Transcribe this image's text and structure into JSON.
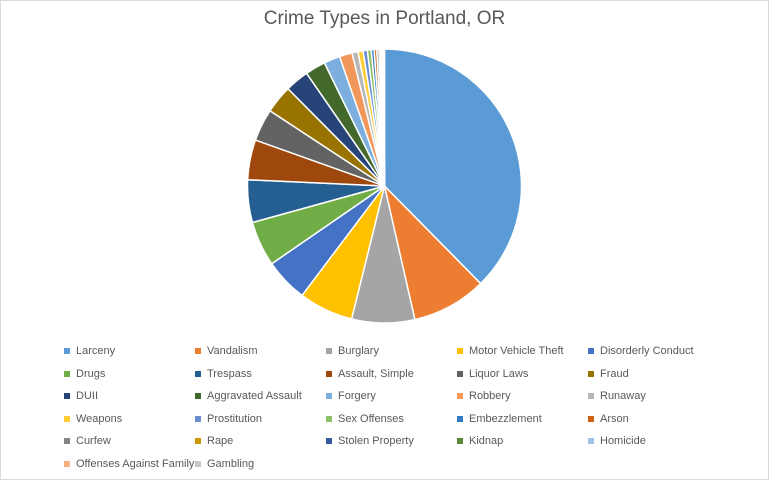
{
  "chart_data": {
    "type": "pie",
    "title": "Crime Types in Portland, OR",
    "legend_position": "bottom",
    "slices": [
      {
        "name": "Larceny",
        "value": 37.5,
        "color": "#5B9BD5"
      },
      {
        "name": "Vandalism",
        "value": 8.8,
        "color": "#ED7D31"
      },
      {
        "name": "Burglary",
        "value": 7.4,
        "color": "#A5A5A5"
      },
      {
        "name": "Motor Vehicle Theft",
        "value": 6.4,
        "color": "#FFC000"
      },
      {
        "name": "Disorderly Conduct",
        "value": 5.1,
        "color": "#4472C4"
      },
      {
        "name": "Drugs",
        "value": 5.3,
        "color": "#70AD47"
      },
      {
        "name": "Trespass",
        "value": 5.0,
        "color": "#255E91"
      },
      {
        "name": "Assault, Simple",
        "value": 4.7,
        "color": "#9E480E"
      },
      {
        "name": "Liquor Laws",
        "value": 3.8,
        "color": "#636363"
      },
      {
        "name": "Fraud",
        "value": 3.3,
        "color": "#997300"
      },
      {
        "name": "DUII",
        "value": 2.8,
        "color": "#264478"
      },
      {
        "name": "Aggravated Assault",
        "value": 2.4,
        "color": "#43682B"
      },
      {
        "name": "Forgery",
        "value": 1.9,
        "color": "#7CAFDD"
      },
      {
        "name": "Robbery",
        "value": 1.5,
        "color": "#F1975A"
      },
      {
        "name": "Runaway",
        "value": 0.7,
        "color": "#B7B7B7"
      },
      {
        "name": "Weapons",
        "value": 0.6,
        "color": "#FFCD33"
      },
      {
        "name": "Prostitution",
        "value": 0.5,
        "color": "#698ED0"
      },
      {
        "name": "Sex Offenses",
        "value": 0.45,
        "color": "#8CC168"
      },
      {
        "name": "Embezzlement",
        "value": 0.35,
        "color": "#327DC2"
      },
      {
        "name": "Arson",
        "value": 0.3,
        "color": "#D26012"
      },
      {
        "name": "Curfew",
        "value": 0.25,
        "color": "#848484"
      },
      {
        "name": "Rape",
        "value": 0.2,
        "color": "#CC9A00"
      },
      {
        "name": "Stolen Property",
        "value": 0.15,
        "color": "#335AA1"
      },
      {
        "name": "Kidnap",
        "value": 0.1,
        "color": "#5A8A39"
      },
      {
        "name": "Homicide",
        "value": 0.08,
        "color": "#9DC3E6"
      },
      {
        "name": "Offenses Against Family",
        "value": 0.07,
        "color": "#F4B183"
      },
      {
        "name": "Gambling",
        "value": 0.05,
        "color": "#C9C9C9"
      }
    ]
  }
}
